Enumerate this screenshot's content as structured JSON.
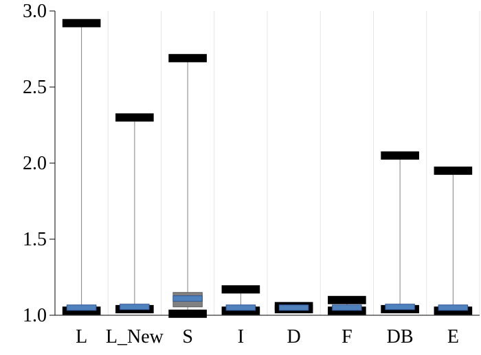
{
  "chart_data": {
    "type": "box",
    "title": "",
    "xlabel": "",
    "ylabel": "",
    "categories": [
      "L",
      "L_New",
      "S",
      "I",
      "D",
      "F",
      "DB",
      "E"
    ],
    "ylim": [
      1.0,
      3.0
    ],
    "yticks": [
      "1.0",
      "1.5",
      "2.0",
      "2.5",
      "3.0"
    ],
    "grid": true,
    "legend": "none",
    "series": [
      {
        "category": "L",
        "min": 1.03,
        "q1": 1.04,
        "median": 1.05,
        "q3": 1.06,
        "max": 2.92
      },
      {
        "category": "L_New",
        "min": 1.04,
        "q1": 1.045,
        "median": 1.055,
        "q3": 1.065,
        "max": 2.3
      },
      {
        "category": "S",
        "min": 1.01,
        "q1": 1.055,
        "median": 1.11,
        "q3": 1.15,
        "max": 2.69
      },
      {
        "category": "I",
        "min": 1.03,
        "q1": 1.04,
        "median": 1.05,
        "q3": 1.06,
        "max": 1.17
      },
      {
        "category": "D",
        "min": 1.04,
        "q1": 1.045,
        "median": 1.05,
        "q3": 1.055,
        "max": 1.06
      },
      {
        "category": "F",
        "min": 1.03,
        "q1": 1.04,
        "median": 1.05,
        "q3": 1.06,
        "max": 1.1
      },
      {
        "category": "DB",
        "min": 1.04,
        "q1": 1.045,
        "median": 1.055,
        "q3": 1.065,
        "max": 2.05
      },
      {
        "category": "E",
        "min": 1.03,
        "q1": 1.04,
        "median": 1.05,
        "q3": 1.06,
        "max": 1.95
      }
    ],
    "colors": {
      "whisker_cap": "#000000",
      "box_outer": "#808080",
      "median_box": "#4f81bd",
      "whisker_line": "#808080",
      "grid": "#e6e6e6",
      "axis": "#000000"
    }
  }
}
